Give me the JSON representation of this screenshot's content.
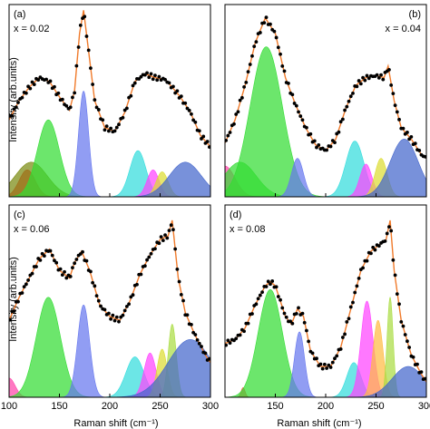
{
  "figure": {
    "ylabel": "Intensity (arb.units)",
    "xlabel": "Raman shift (cm⁻¹)",
    "data_marker_color": "#000000",
    "fit_line_color": "#f07a2a"
  },
  "chart_data": [
    {
      "type": "area",
      "panel_label": "(a)",
      "composition_label": "x = 0.02",
      "xlim": [
        100,
        300
      ],
      "ylim": [
        0,
        1
      ],
      "xticks": [],
      "show_ylabel": true,
      "show_xlabel": false,
      "peaks": [
        {
          "center": 118,
          "width": 8,
          "amplitude": 0.14,
          "color": "#ff2a2a"
        },
        {
          "center": 122,
          "width": 16,
          "amplitude": 0.18,
          "color": "#7a8a10"
        },
        {
          "center": 139,
          "width": 11,
          "amplitude": 0.4,
          "color": "#33dd33"
        },
        {
          "center": 174,
          "width": 5,
          "amplitude": 0.55,
          "color": "#6677ee"
        },
        {
          "center": 228,
          "width": 8,
          "amplitude": 0.24,
          "color": "#33dddd"
        },
        {
          "center": 243,
          "width": 6,
          "amplitude": 0.14,
          "color": "#ff44ff"
        },
        {
          "center": 252,
          "width": 6,
          "amplitude": 0.13,
          "color": "#dddd33"
        },
        {
          "center": 275,
          "width": 16,
          "amplitude": 0.18,
          "color": "#4466cc"
        }
      ],
      "fit": {
        "x": [
          100,
          110,
          120,
          130,
          140,
          150,
          160,
          165,
          170,
          174,
          178,
          185,
          195,
          205,
          215,
          225,
          235,
          245,
          255,
          262,
          270,
          280,
          290,
          300
        ],
        "y": [
          0.4,
          0.5,
          0.57,
          0.62,
          0.6,
          0.52,
          0.45,
          0.55,
          0.85,
          0.97,
          0.8,
          0.5,
          0.36,
          0.34,
          0.44,
          0.6,
          0.64,
          0.62,
          0.61,
          0.57,
          0.52,
          0.44,
          0.32,
          0.26
        ]
      },
      "points_step": 2
    },
    {
      "type": "area",
      "panel_label": "(b)",
      "composition_label": "x = 0.04",
      "xlim": [
        100,
        300
      ],
      "ylim": [
        0,
        1
      ],
      "xticks": [],
      "show_ylabel": false,
      "show_xlabel": false,
      "peaks": [
        {
          "center": 100,
          "width": 10,
          "amplitude": 0.16,
          "color": "#ff44aa"
        },
        {
          "center": 115,
          "width": 16,
          "amplitude": 0.18,
          "color": "#33dd33"
        },
        {
          "center": 141,
          "width": 16,
          "amplitude": 0.78,
          "color": "#33dd33"
        },
        {
          "center": 172,
          "width": 6,
          "amplitude": 0.2,
          "color": "#6677ee"
        },
        {
          "center": 229,
          "width": 9,
          "amplitude": 0.29,
          "color": "#33dddd"
        },
        {
          "center": 240,
          "width": 6,
          "amplitude": 0.17,
          "color": "#ff44ff"
        },
        {
          "center": 255,
          "width": 6,
          "amplitude": 0.2,
          "color": "#dddd33"
        },
        {
          "center": 278,
          "width": 14,
          "amplitude": 0.3,
          "color": "#4466cc"
        }
      ],
      "fit": {
        "x": [
          100,
          110,
          120,
          130,
          140,
          150,
          160,
          170,
          180,
          190,
          200,
          210,
          220,
          230,
          240,
          250,
          258,
          262,
          268,
          275,
          285,
          295,
          300
        ],
        "y": [
          0.28,
          0.4,
          0.58,
          0.8,
          0.93,
          0.85,
          0.62,
          0.48,
          0.36,
          0.27,
          0.24,
          0.3,
          0.46,
          0.58,
          0.62,
          0.63,
          0.62,
          0.68,
          0.5,
          0.36,
          0.3,
          0.22,
          0.2
        ]
      },
      "points_step": 2
    },
    {
      "type": "area",
      "panel_label": "(c)",
      "composition_label": "x = 0.06",
      "xlim": [
        100,
        300
      ],
      "ylim": [
        0,
        1
      ],
      "xticks": [
        "100",
        "150",
        "200",
        "250",
        "300"
      ],
      "show_ylabel": true,
      "show_xlabel": true,
      "peaks": [
        {
          "center": 100,
          "width": 6,
          "amplitude": 0.1,
          "color": "#ff44aa"
        },
        {
          "center": 139,
          "width": 12,
          "amplitude": 0.52,
          "color": "#33dd33"
        },
        {
          "center": 174,
          "width": 6,
          "amplitude": 0.48,
          "color": "#6677ee"
        },
        {
          "center": 225,
          "width": 9,
          "amplitude": 0.21,
          "color": "#33dddd"
        },
        {
          "center": 240,
          "width": 6,
          "amplitude": 0.23,
          "color": "#ff44ff"
        },
        {
          "center": 252,
          "width": 5,
          "amplitude": 0.25,
          "color": "#dddd33"
        },
        {
          "center": 262,
          "width": 4,
          "amplitude": 0.38,
          "color": "#aadd44"
        },
        {
          "center": 280,
          "width": 22,
          "amplitude": 0.3,
          "color": "#4466cc"
        }
      ],
      "fit": {
        "x": [
          100,
          110,
          120,
          130,
          140,
          150,
          160,
          165,
          172,
          180,
          190,
          200,
          210,
          220,
          230,
          240,
          250,
          258,
          262,
          268,
          275,
          285,
          295,
          300
        ],
        "y": [
          0.4,
          0.52,
          0.62,
          0.72,
          0.77,
          0.66,
          0.62,
          0.7,
          0.76,
          0.66,
          0.48,
          0.42,
          0.4,
          0.5,
          0.64,
          0.74,
          0.82,
          0.84,
          0.92,
          0.62,
          0.44,
          0.32,
          0.22,
          0.18
        ]
      },
      "points_step": 2
    },
    {
      "type": "area",
      "panel_label": "(d)",
      "composition_label": "x = 0.08",
      "xlim": [
        100,
        300
      ],
      "ylim": [
        0,
        1
      ],
      "xticks": [
        "150",
        "200",
        "250",
        "300"
      ],
      "show_ylabel": false,
      "show_xlabel": true,
      "peaks": [
        {
          "center": 118,
          "width": 2,
          "amplitude": 0.05,
          "color": "#ff4444"
        },
        {
          "center": 145,
          "width": 12,
          "amplitude": 0.56,
          "color": "#33dd33"
        },
        {
          "center": 174,
          "width": 5,
          "amplitude": 0.34,
          "color": "#6677ee"
        },
        {
          "center": 228,
          "width": 7,
          "amplitude": 0.18,
          "color": "#33dddd"
        },
        {
          "center": 241,
          "width": 6,
          "amplitude": 0.5,
          "color": "#ff44ff"
        },
        {
          "center": 252,
          "width": 5,
          "amplitude": 0.4,
          "color": "#ffbb44"
        },
        {
          "center": 264,
          "width": 3,
          "amplitude": 0.52,
          "color": "#aadd44"
        },
        {
          "center": 282,
          "width": 16,
          "amplitude": 0.16,
          "color": "#4466cc"
        }
      ],
      "fit": {
        "x": [
          100,
          110,
          120,
          130,
          140,
          145,
          150,
          160,
          166,
          172,
          178,
          185,
          195,
          205,
          215,
          225,
          235,
          245,
          255,
          260,
          264,
          268,
          275,
          285,
          295,
          300
        ],
        "y": [
          0.28,
          0.3,
          0.36,
          0.48,
          0.58,
          0.6,
          0.58,
          0.42,
          0.38,
          0.46,
          0.42,
          0.24,
          0.16,
          0.16,
          0.26,
          0.46,
          0.66,
          0.76,
          0.8,
          0.82,
          0.92,
          0.66,
          0.4,
          0.22,
          0.12,
          0.08
        ]
      },
      "points_step": 2
    }
  ]
}
